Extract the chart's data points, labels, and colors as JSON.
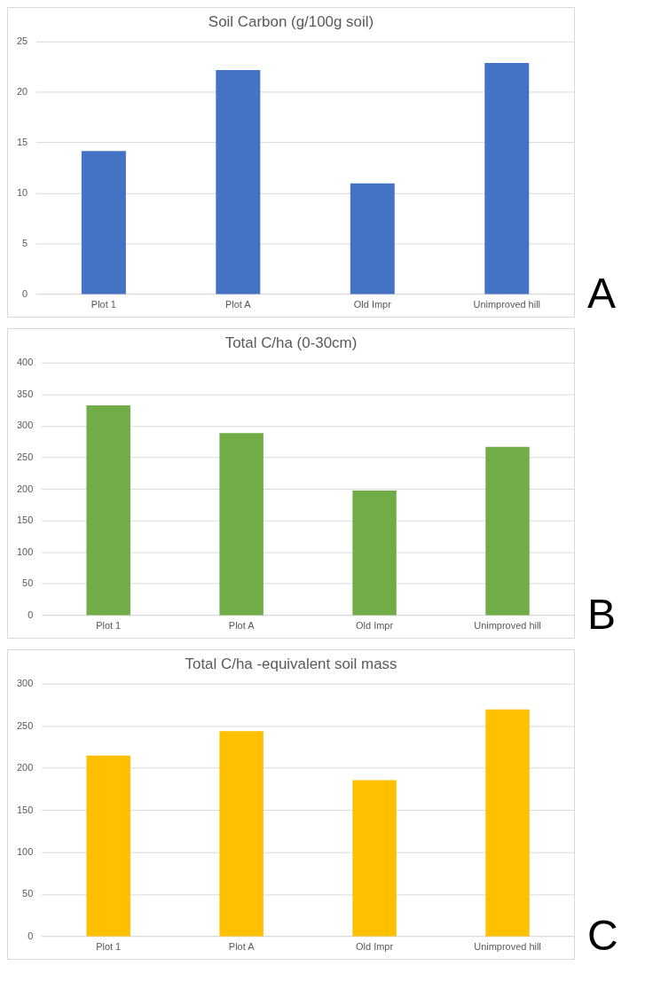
{
  "chart_data": [
    {
      "type": "bar",
      "title": "Soil Carbon (g/100g soil)",
      "categories": [
        "Plot 1",
        "Plot A",
        "Old Impr",
        "Unimproved hill"
      ],
      "values": [
        14.2,
        22.2,
        11.0,
        22.9
      ],
      "color": "#4472c4",
      "ylim": [
        0,
        25
      ],
      "yticks": [
        0,
        5,
        10,
        15,
        20,
        25
      ],
      "grid": "y",
      "annotations": [
        "A"
      ]
    },
    {
      "type": "bar",
      "title": "Total C/ha (0-30cm)",
      "categories": [
        "Plot 1",
        "Plot A",
        "Old Impr",
        "Unimproved hill"
      ],
      "values": [
        333,
        289,
        198,
        267
      ],
      "color": "#70ad47",
      "ylim": [
        0,
        400
      ],
      "yticks": [
        0,
        50,
        100,
        150,
        200,
        250,
        300,
        350,
        400
      ],
      "grid": "y",
      "annotations": [
        "B"
      ]
    },
    {
      "type": "bar",
      "title": "Total C/ha -equivalent soil mass",
      "categories": [
        "Plot 1",
        "Plot A",
        "Old Impr",
        "Unimproved hill"
      ],
      "values": [
        215,
        244,
        186,
        270
      ],
      "color": "#ffc000",
      "ylim": [
        0,
        300
      ],
      "yticks": [
        0,
        50,
        100,
        150,
        200,
        250,
        300
      ],
      "grid": "y",
      "annotations": [
        "C"
      ]
    }
  ]
}
